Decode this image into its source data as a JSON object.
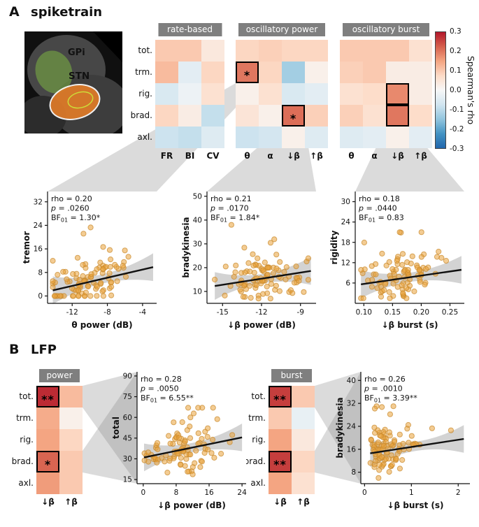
{
  "colors": {
    "point": "#E9A23B",
    "point_stroke": "#C8872A",
    "band": "#9e9e9e",
    "header_bg": "#7f7f7f",
    "colormap_stops": [
      "#2166ac",
      "#4393c3",
      "#92c5de",
      "#d1e5f0",
      "#f7f7f7",
      "#fddbc7",
      "#f4a582",
      "#d6604d",
      "#b2182b"
    ]
  },
  "panelA": {
    "label": "A",
    "title": "spiketrain",
    "brain": {
      "gpi_label": "GPi",
      "stn_label": "STN"
    },
    "row_labels": [
      "tot.",
      "trm.",
      "rig.",
      "brad.",
      "axl."
    ]
  },
  "panelB": {
    "label": "B",
    "title": "LFP",
    "row_labels": [
      "tot.",
      "trm.",
      "rig.",
      "brad.",
      "axl."
    ]
  },
  "chart_data": {
    "colorbar": {
      "label": "Spearman's rho",
      "max": 0.3,
      "min": -0.3,
      "ticks": [
        "0.3",
        "0.2",
        "0.1",
        "0.0",
        "-0.1",
        "-0.2",
        "-0.3"
      ]
    },
    "heatmaps": [
      {
        "type": "heatmap",
        "panel": "A",
        "header": "rate-based",
        "cols": [
          "FR",
          "BI",
          "CV"
        ],
        "rows": [
          "tot.",
          "trm.",
          "rig.",
          "brad.",
          "axl."
        ],
        "values": [
          [
            0.1,
            0.1,
            0.04
          ],
          [
            0.12,
            -0.04,
            0.08
          ],
          [
            -0.06,
            -0.02,
            0.06
          ],
          [
            0.08,
            0.03,
            -0.09
          ],
          [
            -0.08,
            -0.09,
            -0.05
          ]
        ],
        "marks": [
          [
            "",
            "",
            ""
          ],
          [
            "",
            "",
            ""
          ],
          [
            "",
            "",
            ""
          ],
          [
            "",
            "",
            ""
          ],
          [
            "",
            "",
            ""
          ]
        ],
        "outlines": [
          [
            0,
            0,
            0
          ],
          [
            0,
            0,
            0
          ],
          [
            0,
            0,
            0
          ],
          [
            0,
            0,
            0
          ],
          [
            0,
            0,
            0
          ]
        ]
      },
      {
        "type": "heatmap",
        "panel": "A",
        "header": "oscillatory power",
        "cols": [
          "θ",
          "α",
          "↓β",
          "↑β"
        ],
        "rows": [
          "tot.",
          "trm.",
          "rig.",
          "brad.",
          "axl."
        ],
        "values": [
          [
            0.08,
            0.09,
            0.08,
            0.08
          ],
          [
            0.2,
            0.08,
            -0.13,
            0.02
          ],
          [
            0.02,
            0.06,
            -0.06,
            -0.04
          ],
          [
            0.05,
            0.02,
            0.21,
            0.09
          ],
          [
            -0.08,
            -0.07,
            0.02,
            -0.05
          ]
        ],
        "marks": [
          [
            "",
            "",
            "",
            ""
          ],
          [
            "*",
            "",
            "",
            ""
          ],
          [
            "",
            "",
            "",
            ""
          ],
          [
            "",
            "",
            "*",
            ""
          ],
          [
            "",
            "",
            "",
            ""
          ]
        ],
        "outlines": [
          [
            0,
            0,
            0,
            0
          ],
          [
            1,
            0,
            0,
            0
          ],
          [
            0,
            0,
            0,
            0
          ],
          [
            0,
            0,
            1,
            0
          ],
          [
            0,
            0,
            0,
            0
          ]
        ]
      },
      {
        "type": "heatmap",
        "panel": "A",
        "header": "oscillatory burst",
        "cols": [
          "θ",
          "α",
          "↓β",
          "↑β"
        ],
        "rows": [
          "tot.",
          "trm.",
          "rig.",
          "brad.",
          "axl."
        ],
        "values": [
          [
            0.1,
            0.1,
            0.1,
            0.06
          ],
          [
            0.09,
            0.1,
            0.03,
            0.03
          ],
          [
            0.06,
            0.07,
            0.18,
            0.03
          ],
          [
            0.09,
            0.06,
            0.2,
            0.07
          ],
          [
            -0.05,
            -0.04,
            0.02,
            -0.04
          ]
        ],
        "marks": [
          [
            "",
            "",
            "",
            ""
          ],
          [
            "",
            "",
            "",
            ""
          ],
          [
            "",
            "",
            "",
            ""
          ],
          [
            "",
            "",
            "",
            ""
          ],
          [
            "",
            "",
            "",
            ""
          ]
        ],
        "outlines": [
          [
            0,
            0,
            0,
            0
          ],
          [
            0,
            0,
            0,
            0
          ],
          [
            0,
            0,
            1,
            0
          ],
          [
            0,
            0,
            1,
            0
          ],
          [
            0,
            0,
            0,
            0
          ]
        ]
      },
      {
        "type": "heatmap",
        "panel": "B",
        "header": "power",
        "cols": [
          "↓β",
          "↑β"
        ],
        "rows": [
          "tot.",
          "trm.",
          "rig.",
          "brad.",
          "axl."
        ],
        "values": [
          [
            0.28,
            0.12
          ],
          [
            0.14,
            0.02
          ],
          [
            0.15,
            0.08
          ],
          [
            0.22,
            0.1
          ],
          [
            0.16,
            0.1
          ]
        ],
        "marks": [
          [
            "**",
            ""
          ],
          [
            "",
            ""
          ],
          [
            "",
            ""
          ],
          [
            "*",
            ""
          ],
          [
            "",
            ""
          ]
        ],
        "outlines": [
          [
            1,
            0
          ],
          [
            0,
            0
          ],
          [
            0,
            0
          ],
          [
            1,
            0
          ],
          [
            0,
            0
          ]
        ]
      },
      {
        "type": "heatmap",
        "panel": "B",
        "header": "burst",
        "cols": [
          "↓β",
          "↑β"
        ],
        "rows": [
          "tot.",
          "trm.",
          "rig.",
          "brad.",
          "axl."
        ],
        "values": [
          [
            0.26,
            0.1
          ],
          [
            0.1,
            -0.03
          ],
          [
            0.15,
            0.04
          ],
          [
            0.26,
            0.08
          ],
          [
            0.15,
            0.06
          ]
        ],
        "marks": [
          [
            "**",
            ""
          ],
          [
            "",
            ""
          ],
          [
            "",
            ""
          ],
          [
            "**",
            ""
          ],
          [
            "",
            ""
          ]
        ],
        "outlines": [
          [
            1,
            0
          ],
          [
            0,
            0
          ],
          [
            0,
            0
          ],
          [
            1,
            0
          ],
          [
            0,
            0
          ]
        ]
      }
    ],
    "scatters": [
      {
        "type": "scatter",
        "panel": "A",
        "ylabel": "tremor",
        "xlabel": "θ power (dB)",
        "rho": "0.20",
        "p": ".0260",
        "bf": "1.30*",
        "xlim": [
          -14.8,
          -2.4
        ],
        "xticks": [
          -12,
          -8,
          -4
        ],
        "xtick_labels": [
          "-12",
          "-8",
          "-4"
        ],
        "ylim": [
          -2.5,
          35.5
        ],
        "yticks": [
          0,
          8,
          16,
          24,
          32
        ],
        "ytick_labels": [
          "0",
          "8",
          "16",
          "24",
          "32"
        ],
        "line": [
          [
            -14.2,
            1.9
          ],
          [
            -2.8,
            9.8
          ]
        ],
        "pts": {
          "n": 97,
          "seed": 101,
          "x_dist": "normal",
          "x_mu": -9.7,
          "x_sd": 2.1,
          "noise": 4.2,
          "outlier_p": 0.06,
          "clip_x": [
            -14.2,
            -3.1
          ],
          "clip_y": [
            0,
            30.5
          ]
        }
      },
      {
        "type": "scatter",
        "panel": "A",
        "ylabel": "bradykinesia",
        "xlabel": "↓β power (dB)",
        "rho": "0.21",
        "p": ".0170",
        "bf": "1.84*",
        "xlim": [
          -16.2,
          -7.8
        ],
        "xticks": [
          -15,
          -12,
          -9
        ],
        "xtick_labels": [
          "-15",
          "-12",
          "-9"
        ],
        "ylim": [
          5,
          52
        ],
        "yticks": [
          10,
          20,
          30,
          40,
          50
        ],
        "ytick_labels": [
          "10",
          "20",
          "30",
          "40",
          "50"
        ],
        "line": [
          [
            -15.6,
            12.3
          ],
          [
            -8.2,
            18.6
          ]
        ],
        "pts": {
          "n": 97,
          "seed": 202,
          "x_dist": "normal",
          "x_mu": -11.9,
          "x_sd": 1.6,
          "noise": 4.8,
          "outlier_p": 0.05,
          "clip_x": [
            -15.6,
            -8.4
          ],
          "clip_y": [
            7,
            38
          ]
        }
      },
      {
        "type": "scatter",
        "panel": "A",
        "ylabel": "rigidity",
        "xlabel": "↓β burst (s)",
        "rho": "0.18",
        "p": ".0440",
        "bf": "0.83",
        "xlim": [
          0.085,
          0.275
        ],
        "xticks": [
          0.1,
          0.15,
          0.2,
          0.25
        ],
        "xtick_labels": [
          "0.10",
          "0.15",
          "0.20",
          "0.25"
        ],
        "ylim": [
          0,
          33
        ],
        "yticks": [
          6,
          12,
          18,
          24,
          30
        ],
        "ytick_labels": [
          "6",
          "12",
          "18",
          "24",
          "30"
        ],
        "line": [
          [
            0.095,
            5.6
          ],
          [
            0.27,
            9.9
          ]
        ],
        "pts": {
          "n": 97,
          "seed": 303,
          "x_dist": "normal",
          "x_mu": 0.165,
          "x_sd": 0.034,
          "noise": 3.6,
          "outlier_p": 0.05,
          "clip_x": [
            0.095,
            0.27
          ],
          "clip_y": [
            1.5,
            21
          ]
        }
      },
      {
        "type": "scatter",
        "panel": "B",
        "ylabel": "total",
        "xlabel": "↓β power (dB)",
        "rho": "0.28",
        "p": ".0050",
        "bf": "6.55**",
        "xlim": [
          -1.5,
          25
        ],
        "xticks": [
          0,
          8,
          16,
          24
        ],
        "xtick_labels": [
          "0",
          "8",
          "16",
          "24"
        ],
        "ylim": [
          12,
          93
        ],
        "yticks": [
          15,
          30,
          45,
          60,
          75,
          90
        ],
        "ytick_labels": [
          "15",
          "30",
          "45",
          "60",
          "75",
          "90"
        ],
        "line": [
          [
            0.2,
            31
          ],
          [
            24,
            45.5
          ]
        ],
        "pts": {
          "n": 97,
          "seed": 404,
          "x_dist": "normal",
          "x_mu": 9.5,
          "x_sd": 4.8,
          "noise": 8.5,
          "outlier_p": 0.05,
          "clip_x": [
            0.3,
            23.5
          ],
          "clip_y": [
            18,
            67
          ]
        }
      },
      {
        "type": "scatter",
        "panel": "B",
        "ylabel": "bradykinesia",
        "xlabel": "↓β burst (s)",
        "rho": "0.26",
        "p": ".0010",
        "bf": "3.39**",
        "xlim": [
          -0.08,
          2.25
        ],
        "xticks": [
          0,
          1,
          2
        ],
        "xtick_labels": [
          "0",
          "1",
          "2"
        ],
        "ylim": [
          4,
          43
        ],
        "yticks": [
          8,
          16,
          24,
          32,
          40
        ],
        "ytick_labels": [
          "8",
          "16",
          "24",
          "32",
          "40"
        ],
        "line": [
          [
            0.12,
            14.6
          ],
          [
            2.12,
            19.6
          ]
        ],
        "pts": {
          "n": 97,
          "seed": 505,
          "x_dist": "lognormal",
          "x_med": 0.42,
          "x_sig": 0.5,
          "noise": 4.2,
          "outlier_p": 0.05,
          "clip_x": [
            0.1,
            2.12
          ],
          "clip_y": [
            6,
            31
          ]
        }
      }
    ]
  }
}
